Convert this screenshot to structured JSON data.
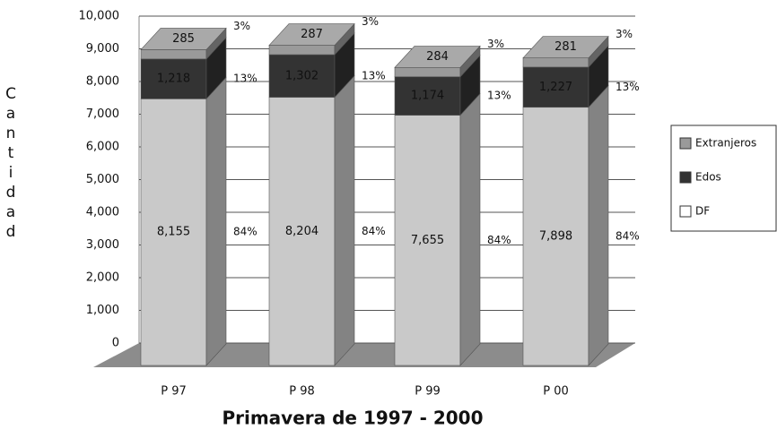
{
  "chart_data": {
    "type": "bar3d_stacked",
    "x_label": "Primavera de 1997 - 2000",
    "y_label": "Cantidad",
    "categories": [
      "P 97",
      "P 98",
      "P 99",
      "P 00"
    ],
    "series": [
      {
        "name": "DF",
        "color": "#c9c9c9",
        "values": [
          8155,
          8204,
          7655,
          7898
        ],
        "value_labels": [
          "8,155",
          "8,204",
          "7,655",
          "7,898"
        ],
        "percent_labels": [
          "84%",
          "84%",
          "84%",
          "84%"
        ]
      },
      {
        "name": "Edos",
        "color": "#333333",
        "values": [
          1218,
          1302,
          1174,
          1227
        ],
        "value_labels": [
          "1,218",
          "1,302",
          "1,174",
          "1,227"
        ],
        "percent_labels": [
          "13%",
          "13%",
          "13%",
          "13%"
        ]
      },
      {
        "name": "Extranjeros",
        "color": "#9a9a9a",
        "values": [
          285,
          287,
          284,
          281
        ],
        "percent_labels": [
          "3%",
          "3%",
          "3%",
          "3%"
        ]
      }
    ],
    "ylim": [
      0,
      10000
    ],
    "yticks": [
      0,
      {
        "value": 1000,
        "label": "1,000"
      },
      {
        "value": 2000,
        "label": "2,000"
      },
      {
        "value": 3000,
        "label": "3,000"
      },
      {
        "value": 4000,
        "label": "4,000"
      },
      {
        "value": 5000,
        "label": "5,000"
      },
      {
        "value": 6000,
        "label": "6,000"
      },
      {
        "value": 7000,
        "label": "7,000"
      },
      {
        "value": 8000,
        "label": "8,000"
      },
      {
        "value": 9000,
        "label": "9,000"
      },
      {
        "value": 10000,
        "label": "10,000"
      }
    ],
    "grid": true
  }
}
